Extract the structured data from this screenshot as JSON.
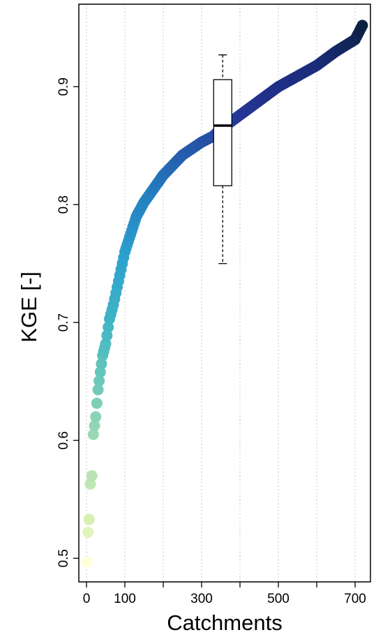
{
  "chart_data": {
    "type": "scatter",
    "title": "",
    "xlabel": "Catchments",
    "ylabel": "KGE [-]",
    "xlim": [
      -20,
      740
    ],
    "ylim": [
      0.48,
      0.97
    ],
    "x_ticks": [
      0,
      100,
      300,
      500,
      700
    ],
    "x_minor_ticks": [
      200,
      400,
      600
    ],
    "x_tick_labels": [
      "0",
      "100",
      "300",
      "500",
      "700"
    ],
    "y_ticks": [
      0.5,
      0.6,
      0.7,
      0.8,
      0.9
    ],
    "y_tick_labels": [
      "0.5",
      "0.6",
      "0.7",
      "0.8",
      "0.9"
    ],
    "grid": {
      "vertical": true,
      "horizontal": false,
      "style": "dotted"
    },
    "color_scale": "yellow-green-blue (light for low KGE, dark navy for high KGE)",
    "color_stops": [
      "#ffffd9",
      "#d9f0b3",
      "#a1dab4",
      "#6ac9b9",
      "#41b6c4",
      "#2c9fcd",
      "#2480c0",
      "#2557aa",
      "#253494",
      "#1a2c7a",
      "#0c2140"
    ],
    "series": [
      {
        "x": [
          1,
          4,
          7,
          10,
          14,
          18,
          24,
          30,
          36,
          42,
          50,
          60,
          70,
          80,
          90,
          100,
          130,
          150,
          200,
          250,
          300,
          330,
          350,
          400,
          450,
          500,
          550,
          600,
          650,
          700,
          719
        ],
        "y": [
          0.497,
          0.522,
          0.533,
          0.563,
          0.57,
          0.605,
          0.62,
          0.643,
          0.658,
          0.672,
          0.682,
          0.703,
          0.715,
          0.73,
          0.745,
          0.76,
          0.79,
          0.802,
          0.825,
          0.842,
          0.853,
          0.858,
          0.864,
          0.876,
          0.888,
          0.9,
          0.909,
          0.918,
          0.93,
          0.94,
          0.952
        ]
      }
    ],
    "boxplot": {
      "x": 355,
      "whisker_low": 0.75,
      "q1": 0.816,
      "median": 0.867,
      "q3": 0.906,
      "whisker_high": 0.927
    }
  }
}
